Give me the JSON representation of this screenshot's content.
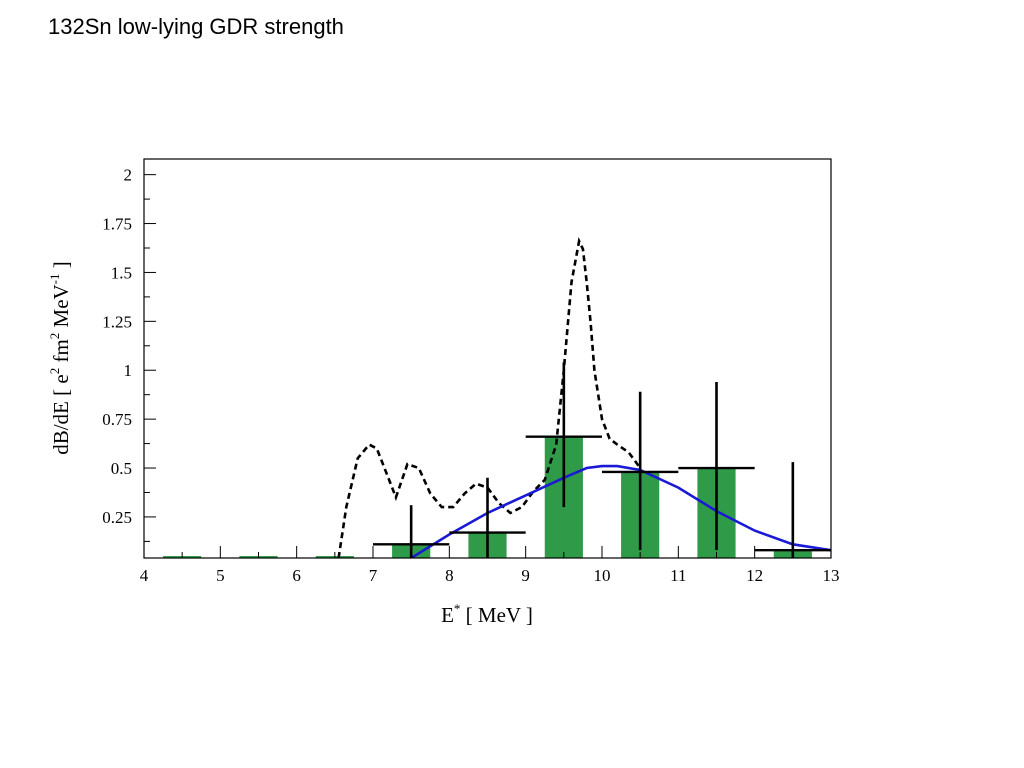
{
  "slide": {
    "title": "132Sn low-lying GDR strength"
  },
  "chart_data": {
    "type": "bar",
    "xlabel": "E* [ MeV ]",
    "ylabel": "dB/dE [ e2 fm2 MeV-1 ]",
    "xlim": [
      4,
      13
    ],
    "ylim": [
      0.04,
      2.08
    ],
    "xticks": [
      "4",
      "5",
      "6",
      "7",
      "8",
      "9",
      "10",
      "11",
      "12",
      "13"
    ],
    "yticks": [
      "0.25",
      "0.5",
      "0.75",
      "1",
      "1.25",
      "1.5",
      "1.75",
      "2"
    ],
    "colors": {
      "bars": "#2f9a48",
      "errors": "#000000",
      "fit": "#1a1ad6",
      "theory": "#000000"
    },
    "bars": [
      {
        "x_from": 4.25,
        "x_to": 4.75,
        "value": 0.05
      },
      {
        "x_from": 5.25,
        "x_to": 5.75,
        "value": 0.05
      },
      {
        "x_from": 6.25,
        "x_to": 6.75,
        "value": 0.05
      },
      {
        "x_from": 7.25,
        "x_to": 7.75,
        "value": 0.11
      },
      {
        "x_from": 8.25,
        "x_to": 8.75,
        "value": 0.17
      },
      {
        "x_from": 9.25,
        "x_to": 9.75,
        "value": 0.66
      },
      {
        "x_from": 10.25,
        "x_to": 10.75,
        "value": 0.48
      },
      {
        "x_from": 11.25,
        "x_to": 11.75,
        "value": 0.5
      },
      {
        "x_from": 12.25,
        "x_to": 12.75,
        "value": 0.08
      }
    ],
    "error_bars": [
      {
        "x": 7.5,
        "y": 0.11,
        "x_from": 7.0,
        "x_to": 8.0,
        "y_low": 0.04,
        "y_high": 0.31
      },
      {
        "x": 8.5,
        "y": 0.17,
        "x_from": 8.0,
        "x_to": 9.0,
        "y_low": 0.04,
        "y_high": 0.45
      },
      {
        "x": 9.5,
        "y": 0.66,
        "x_from": 9.0,
        "x_to": 10.0,
        "y_low": 0.3,
        "y_high": 1.04
      },
      {
        "x": 10.5,
        "y": 0.48,
        "x_from": 10.0,
        "x_to": 11.0,
        "y_low": 0.08,
        "y_high": 0.89
      },
      {
        "x": 11.5,
        "y": 0.5,
        "x_from": 11.0,
        "x_to": 12.0,
        "y_low": 0.08,
        "y_high": 0.94
      },
      {
        "x": 12.5,
        "y": 0.08,
        "x_from": 12.0,
        "x_to": 13.0,
        "y_low": 0.04,
        "y_high": 0.53
      }
    ],
    "fit_curve": {
      "style": "solid",
      "x": [
        7.5,
        8.0,
        8.5,
        9.0,
        9.5,
        9.8,
        10.0,
        10.2,
        10.5,
        11.0,
        11.5,
        12.0,
        12.5,
        13.0
      ],
      "y": [
        0.04,
        0.16,
        0.27,
        0.36,
        0.45,
        0.5,
        0.51,
        0.51,
        0.49,
        0.4,
        0.28,
        0.18,
        0.11,
        0.08
      ]
    },
    "theory_curve": {
      "style": "dashed",
      "x": [
        6.55,
        6.65,
        6.8,
        6.95,
        7.05,
        7.2,
        7.3,
        7.45,
        7.6,
        7.75,
        7.9,
        8.05,
        8.2,
        8.35,
        8.5,
        8.65,
        8.8,
        8.95,
        9.1,
        9.25,
        9.4,
        9.5,
        9.6,
        9.7,
        9.75,
        9.8,
        9.85,
        9.9,
        10.0,
        10.1,
        10.2,
        10.35,
        10.5
      ],
      "y": [
        0.04,
        0.3,
        0.55,
        0.62,
        0.6,
        0.45,
        0.35,
        0.52,
        0.5,
        0.37,
        0.3,
        0.3,
        0.37,
        0.42,
        0.4,
        0.32,
        0.27,
        0.3,
        0.38,
        0.44,
        0.62,
        1.0,
        1.45,
        1.66,
        1.62,
        1.45,
        1.25,
        1.0,
        0.75,
        0.65,
        0.62,
        0.58,
        0.5
      ]
    }
  }
}
